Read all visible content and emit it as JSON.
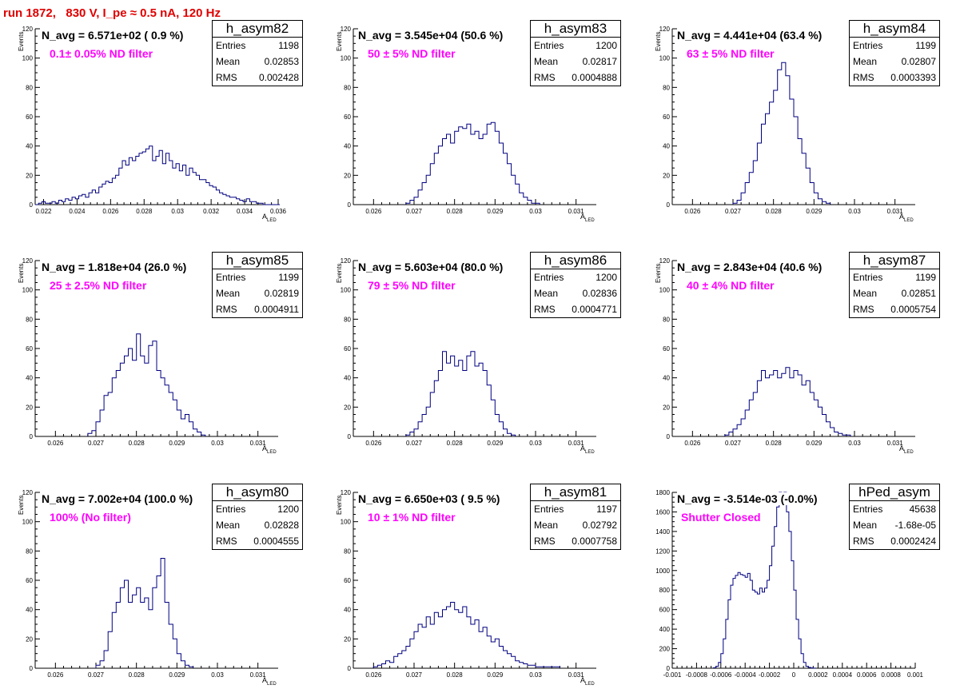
{
  "run_title": "run 1872,   830 V, I_pe ≈ 0.5 nA, 120 Hz",
  "colors": {
    "title": "#e00000",
    "filter_label": "#ff00ff",
    "histogram_line": "#000080"
  },
  "chart_data": [
    {
      "type": "histogram",
      "name": "h_asym82",
      "n_avg": "N_avg = 6.571e+02 ( 0.9 %)",
      "filter": "0.1± 0.05% ND filter",
      "entries": "1198",
      "mean": "0.02853",
      "rms": "0.002428",
      "xlabel": "A",
      "xlabel_sub": "LED",
      "ylabel": "Events",
      "xlim": [
        0.0215,
        0.036
      ],
      "ylim": [
        0,
        120
      ],
      "xticks": [
        {
          "v": 0.022,
          "l": "0.022"
        },
        {
          "v": 0.024,
          "l": "0.024"
        },
        {
          "v": 0.026,
          "l": "0.026"
        },
        {
          "v": 0.028,
          "l": "0.028"
        },
        {
          "v": 0.03,
          "l": "0.03"
        },
        {
          "v": 0.032,
          "l": "0.032"
        },
        {
          "v": 0.034,
          "l": "0.034"
        },
        {
          "v": 0.036,
          "l": "0.036"
        }
      ],
      "yticks": [
        0,
        20,
        40,
        60,
        80,
        100,
        120
      ],
      "bins": {
        "start": 0.0215,
        "width": 0.0002,
        "counts": [
          0,
          1,
          2,
          1,
          1,
          2,
          1,
          3,
          2,
          4,
          3,
          5,
          4,
          6,
          7,
          5,
          8,
          10,
          8,
          12,
          14,
          16,
          15,
          18,
          20,
          25,
          30,
          27,
          32,
          30,
          33,
          35,
          36,
          38,
          40,
          30,
          33,
          37,
          28,
          35,
          30,
          25,
          28,
          23,
          27,
          20,
          25,
          22,
          20,
          17,
          17,
          15,
          13,
          12,
          10,
          8,
          7,
          6,
          5,
          5,
          4,
          3,
          2,
          4,
          2,
          2,
          1,
          1,
          0,
          0,
          0,
          0,
          0
        ]
      }
    },
    {
      "type": "histogram",
      "name": "h_asym83",
      "n_avg": "N_avg = 3.545e+04 (50.6 %)",
      "filter": "50 ± 5% ND filter",
      "entries": "1200",
      "mean": "0.02817",
      "rms": "0.0004888",
      "xlabel": "A",
      "xlabel_sub": "LED",
      "ylabel": "Events",
      "xlim": [
        0.0255,
        0.0315
      ],
      "ylim": [
        0,
        120
      ],
      "xticks": [
        {
          "v": 0.026,
          "l": "0.026"
        },
        {
          "v": 0.027,
          "l": "0.027"
        },
        {
          "v": 0.028,
          "l": "0.028"
        },
        {
          "v": 0.029,
          "l": "0.029"
        },
        {
          "v": 0.03,
          "l": "0.03"
        },
        {
          "v": 0.031,
          "l": "0.031"
        }
      ],
      "yticks": [
        0,
        20,
        40,
        60,
        80,
        100,
        120
      ],
      "bins": {
        "start": 0.0268,
        "width": 0.0001,
        "counts": [
          1,
          3,
          5,
          10,
          15,
          20,
          28,
          35,
          40,
          45,
          48,
          42,
          50,
          53,
          52,
          55,
          48,
          50,
          45,
          48,
          55,
          56,
          50,
          42,
          35,
          28,
          20,
          14,
          8,
          5,
          3,
          1,
          1
        ]
      }
    },
    {
      "type": "histogram",
      "name": "h_asym84",
      "n_avg": "N_avg = 4.441e+04 (63.4 %)",
      "filter": "63 ± 5% ND filter",
      "entries": "1199",
      "mean": "0.02807",
      "rms": "0.0003393",
      "xlabel": "A",
      "xlabel_sub": "LED",
      "ylabel": "Events",
      "xlim": [
        0.0255,
        0.0315
      ],
      "ylim": [
        0,
        120
      ],
      "xticks": [
        {
          "v": 0.026,
          "l": "0.026"
        },
        {
          "v": 0.027,
          "l": "0.027"
        },
        {
          "v": 0.028,
          "l": "0.028"
        },
        {
          "v": 0.029,
          "l": "0.029"
        },
        {
          "v": 0.03,
          "l": "0.03"
        },
        {
          "v": 0.031,
          "l": "0.031"
        }
      ],
      "yticks": [
        0,
        20,
        40,
        60,
        80,
        100,
        120
      ],
      "bins": {
        "start": 0.027,
        "width": 0.0001,
        "counts": [
          1,
          3,
          8,
          15,
          22,
          30,
          42,
          55,
          62,
          70,
          78,
          92,
          97,
          88,
          72,
          60,
          45,
          35,
          25,
          15,
          8,
          4,
          2,
          1
        ]
      }
    },
    {
      "type": "histogram",
      "name": "h_asym85",
      "n_avg": "N_avg = 1.818e+04 (26.0 %)",
      "filter": "25 ± 2.5% ND filter",
      "entries": "1199",
      "mean": "0.02819",
      "rms": "0.0004911",
      "xlabel": "A",
      "xlabel_sub": "LED",
      "ylabel": "Events",
      "xlim": [
        0.0255,
        0.0315
      ],
      "ylim": [
        0,
        120
      ],
      "xticks": [
        {
          "v": 0.026,
          "l": "0.026"
        },
        {
          "v": 0.027,
          "l": "0.027"
        },
        {
          "v": 0.028,
          "l": "0.028"
        },
        {
          "v": 0.029,
          "l": "0.029"
        },
        {
          "v": 0.03,
          "l": "0.03"
        },
        {
          "v": 0.031,
          "l": "0.031"
        }
      ],
      "yticks": [
        0,
        20,
        40,
        60,
        80,
        100,
        120
      ],
      "bins": {
        "start": 0.0268,
        "width": 0.0001,
        "counts": [
          2,
          4,
          10,
          18,
          28,
          30,
          40,
          45,
          50,
          55,
          60,
          52,
          70,
          55,
          50,
          62,
          65,
          45,
          40,
          35,
          30,
          25,
          18,
          12,
          15,
          10,
          5,
          3,
          1
        ]
      }
    },
    {
      "type": "histogram",
      "name": "h_asym86",
      "n_avg": "N_avg = 5.603e+04 (80.0 %)",
      "filter": "79 ± 5% ND filter",
      "entries": "1200",
      "mean": "0.02836",
      "rms": "0.0004771",
      "xlabel": "A",
      "xlabel_sub": "LED",
      "ylabel": "Events",
      "xlim": [
        0.0255,
        0.0315
      ],
      "ylim": [
        0,
        120
      ],
      "xticks": [
        {
          "v": 0.026,
          "l": "0.026"
        },
        {
          "v": 0.027,
          "l": "0.027"
        },
        {
          "v": 0.028,
          "l": "0.028"
        },
        {
          "v": 0.029,
          "l": "0.029"
        },
        {
          "v": 0.03,
          "l": "0.03"
        },
        {
          "v": 0.031,
          "l": "0.031"
        }
      ],
      "yticks": [
        0,
        20,
        40,
        60,
        80,
        100,
        120
      ],
      "bins": {
        "start": 0.0268,
        "width": 0.0001,
        "counts": [
          1,
          3,
          5,
          10,
          15,
          20,
          30,
          38,
          45,
          58,
          50,
          55,
          48,
          52,
          45,
          55,
          58,
          48,
          50,
          45,
          35,
          25,
          15,
          10,
          5,
          2,
          1
        ]
      }
    },
    {
      "type": "histogram",
      "name": "h_asym87",
      "n_avg": "N_avg = 2.843e+04 (40.6 %)",
      "filter": "40 ± 4% ND filter",
      "entries": "1199",
      "mean": "0.02851",
      "rms": "0.0005754",
      "xlabel": "A",
      "xlabel_sub": "LED",
      "ylabel": "Events",
      "xlim": [
        0.0255,
        0.0315
      ],
      "ylim": [
        0,
        120
      ],
      "xticks": [
        {
          "v": 0.026,
          "l": "0.026"
        },
        {
          "v": 0.027,
          "l": "0.027"
        },
        {
          "v": 0.028,
          "l": "0.028"
        },
        {
          "v": 0.029,
          "l": "0.029"
        },
        {
          "v": 0.03,
          "l": "0.03"
        },
        {
          "v": 0.031,
          "l": "0.031"
        }
      ],
      "yticks": [
        0,
        20,
        40,
        60,
        80,
        100,
        120
      ],
      "bins": {
        "start": 0.0268,
        "width": 0.0001,
        "counts": [
          1,
          3,
          5,
          8,
          12,
          18,
          25,
          30,
          38,
          45,
          40,
          42,
          45,
          40,
          43,
          47,
          40,
          45,
          42,
          35,
          38,
          30,
          25,
          20,
          15,
          10,
          6,
          3,
          2,
          1,
          1
        ]
      }
    },
    {
      "type": "histogram",
      "name": "h_asym80",
      "n_avg": "N_avg = 7.002e+04 (100.0 %)",
      "filter": "100% (No filter)",
      "entries": "1200",
      "mean": "0.02828",
      "rms": "0.0004555",
      "xlabel": "A",
      "xlabel_sub": "LED",
      "ylabel": "Events",
      "xlim": [
        0.0255,
        0.0315
      ],
      "ylim": [
        0,
        120
      ],
      "xticks": [
        {
          "v": 0.026,
          "l": "0.026"
        },
        {
          "v": 0.027,
          "l": "0.027"
        },
        {
          "v": 0.028,
          "l": "0.028"
        },
        {
          "v": 0.029,
          "l": "0.029"
        },
        {
          "v": 0.03,
          "l": "0.03"
        },
        {
          "v": 0.031,
          "l": "0.031"
        }
      ],
      "yticks": [
        0,
        20,
        40,
        60,
        80,
        100,
        120
      ],
      "bins": {
        "start": 0.027,
        "width": 0.0001,
        "counts": [
          2,
          5,
          12,
          25,
          38,
          45,
          55,
          60,
          45,
          50,
          55,
          45,
          48,
          40,
          55,
          63,
          75,
          45,
          30,
          20,
          10,
          5,
          2,
          1
        ]
      }
    },
    {
      "type": "histogram",
      "name": "h_asym81",
      "n_avg": "N_avg = 6.650e+03 ( 9.5 %)",
      "filter": "10 ± 1% ND filter",
      "entries": "1197",
      "mean": "0.02792",
      "rms": "0.0007758",
      "xlabel": "A",
      "xlabel_sub": "LED",
      "ylabel": "Events",
      "xlim": [
        0.0255,
        0.0315
      ],
      "ylim": [
        0,
        120
      ],
      "xticks": [
        {
          "v": 0.026,
          "l": "0.026"
        },
        {
          "v": 0.027,
          "l": "0.027"
        },
        {
          "v": 0.028,
          "l": "0.028"
        },
        {
          "v": 0.029,
          "l": "0.029"
        },
        {
          "v": 0.03,
          "l": "0.03"
        },
        {
          "v": 0.031,
          "l": "0.031"
        }
      ],
      "yticks": [
        0,
        20,
        40,
        60,
        80,
        100,
        120
      ],
      "bins": {
        "start": 0.026,
        "width": 0.0001,
        "counts": [
          1,
          2,
          3,
          5,
          4,
          8,
          10,
          12,
          15,
          20,
          25,
          30,
          28,
          35,
          30,
          38,
          35,
          40,
          42,
          45,
          40,
          38,
          42,
          35,
          30,
          33,
          25,
          28,
          22,
          18,
          20,
          15,
          12,
          10,
          8,
          5,
          4,
          3,
          2,
          2,
          1,
          1,
          1,
          1,
          1,
          1
        ]
      }
    },
    {
      "type": "histogram",
      "name": "hPed_asym",
      "n_avg": "N_avg = -3.514e-03 (-0.0%)",
      "filter": "Shutter Closed",
      "entries": "45638",
      "mean": "-1.68e-05",
      "rms": "0.0002424",
      "xlabel": "",
      "xlabel_sub": "",
      "ylabel": "",
      "xlim": [
        -0.001,
        0.001
      ],
      "ylim": [
        0,
        1800
      ],
      "xticks": [
        {
          "v": -0.001,
          "l": "-0.001"
        },
        {
          "v": -0.0008,
          "l": "-0.0008"
        },
        {
          "v": -0.0006,
          "l": "-0.0006"
        },
        {
          "v": -0.0004,
          "l": "-0.0004"
        },
        {
          "v": -0.0002,
          "l": "-0.0002"
        },
        {
          "v": 0,
          "l": "0"
        },
        {
          "v": 0.0002,
          "l": "0.0002"
        },
        {
          "v": 0.0004,
          "l": "0.0004"
        },
        {
          "v": 0.0006,
          "l": "0.0006"
        },
        {
          "v": 0.0008,
          "l": "0.0008"
        },
        {
          "v": 0.001,
          "l": "0.001"
        }
      ],
      "yticks": [
        0,
        200,
        400,
        600,
        800,
        1000,
        1200,
        1400,
        1600,
        1800
      ],
      "bins": {
        "start": -0.00066,
        "width": 2e-05,
        "counts": [
          5,
          20,
          60,
          150,
          300,
          500,
          700,
          850,
          920,
          950,
          980,
          960,
          950,
          930,
          970,
          900,
          800,
          780,
          760,
          820,
          780,
          820,
          900,
          1050,
          1250,
          1450,
          1650,
          1800,
          1750,
          1820,
          1600,
          1400,
          1100,
          800,
          500,
          300,
          150,
          60,
          20,
          8,
          3,
          1
        ]
      }
    }
  ]
}
